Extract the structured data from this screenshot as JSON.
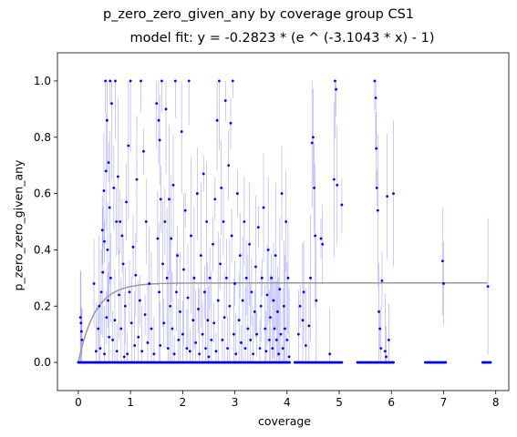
{
  "chart_data": {
    "type": "scatter",
    "title": "p_zero_zero_given_any by coverage group CS1",
    "subtitle": "model fit: y = -0.2823 * (e ^ (-3.1043 * x) - 1)",
    "xlabel": "coverage",
    "ylabel": "p_zero_zero_given_any",
    "xlim": [
      -0.4,
      8.25
    ],
    "ylim": [
      -0.1,
      1.1
    ],
    "xticks": [
      "0",
      "1",
      "2",
      "3",
      "4",
      "5",
      "6",
      "7",
      "8"
    ],
    "yticks": [
      "0.0",
      "0.2",
      "0.4",
      "0.6",
      "0.8",
      "1.0"
    ],
    "grid": false,
    "marker_color": "#0000ff",
    "fit_color": "#999999",
    "model": {
      "a": -0.2823,
      "b": -3.1043
    },
    "fit_x_range": [
      0,
      7.85
    ],
    "series": [
      {
        "points": [
          [
            0.04,
            0.16
          ],
          [
            0.05,
            0.14
          ],
          [
            0.06,
            0.11
          ],
          [
            0.07,
            0.08
          ],
          [
            0.3,
            0.28
          ],
          [
            0.34,
            0.04
          ],
          [
            0.38,
            0.12
          ],
          [
            0.4,
            0.2
          ],
          [
            0.42,
            0.05
          ],
          [
            0.44,
            0.25
          ],
          [
            0.46,
            0.47
          ],
          [
            0.47,
            0.32
          ],
          [
            0.49,
            0.61
          ],
          [
            0.5,
            0.43
          ],
          [
            0.5,
            0.03
          ],
          [
            0.52,
            1.0
          ],
          [
            0.53,
            0.68
          ],
          [
            0.54,
            0.16
          ],
          [
            0.55,
            0.86
          ],
          [
            0.56,
            0.4
          ],
          [
            0.57,
            0.22
          ],
          [
            0.58,
            0.71
          ],
          [
            0.59,
            0.09
          ],
          [
            0.6,
            0.55
          ],
          [
            0.61,
            1.0
          ],
          [
            0.62,
            0.3
          ],
          [
            0.64,
            0.92
          ],
          [
            0.66,
            0.08
          ],
          [
            0.68,
            0.62
          ],
          [
            0.7,
            0.15
          ],
          [
            0.71,
            1.0
          ],
          [
            0.73,
            0.5
          ],
          [
            0.74,
            0.04
          ],
          [
            0.76,
            0.66
          ],
          [
            0.78,
            0.24
          ],
          [
            0.8,
            0.5
          ],
          [
            0.82,
            0.12
          ],
          [
            0.84,
            0.45
          ],
          [
            0.86,
            0.35
          ],
          [
            0.88,
            0.02
          ],
          [
            0.9,
            0.2
          ],
          [
            0.92,
            0.57
          ],
          [
            0.94,
            0.03
          ],
          [
            0.96,
            0.77
          ],
          [
            0.98,
            0.25
          ],
          [
            1.0,
            1.0
          ],
          [
            1.02,
            0.14
          ],
          [
            1.05,
            0.41
          ],
          [
            1.08,
            0.06
          ],
          [
            1.1,
            0.31
          ],
          [
            1.12,
            0.65
          ],
          [
            1.15,
            0.09
          ],
          [
            1.18,
            0.22
          ],
          [
            1.2,
            1.0
          ],
          [
            1.22,
            0.04
          ],
          [
            1.25,
            0.75
          ],
          [
            1.28,
            0.17
          ],
          [
            1.3,
            0.5
          ],
          [
            1.33,
            0.07
          ],
          [
            1.36,
            0.28
          ],
          [
            1.4,
            0.12
          ],
          [
            1.45,
            0.03
          ],
          [
            1.5,
            0.92
          ],
          [
            1.52,
            0.44
          ],
          [
            1.54,
            0.86
          ],
          [
            1.55,
            0.25
          ],
          [
            1.56,
            0.79
          ],
          [
            1.57,
            0.06
          ],
          [
            1.58,
            0.58
          ],
          [
            1.6,
            1.0
          ],
          [
            1.62,
            0.35
          ],
          [
            1.64,
            0.14
          ],
          [
            1.66,
            0.5
          ],
          [
            1.68,
            0.9
          ],
          [
            1.7,
            0.3
          ],
          [
            1.72,
            0.05
          ],
          [
            1.74,
            0.58
          ],
          [
            1.76,
            0.2
          ],
          [
            1.78,
            0.44
          ],
          [
            1.8,
            0.12
          ],
          [
            1.82,
            0.63
          ],
          [
            1.84,
            0.03
          ],
          [
            1.86,
            1.0
          ],
          [
            1.88,
            0.25
          ],
          [
            1.9,
            0.38
          ],
          [
            1.92,
            0.08
          ],
          [
            1.95,
            0.18
          ],
          [
            1.98,
            0.82
          ],
          [
            2.0,
            0.1
          ],
          [
            2.02,
            0.33
          ],
          [
            2.05,
            0.54
          ],
          [
            2.08,
            0.05
          ],
          [
            2.1,
            0.23
          ],
          [
            2.12,
            1.0
          ],
          [
            2.14,
            0.04
          ],
          [
            2.16,
            0.45
          ],
          [
            2.2,
            0.15
          ],
          [
            2.22,
            0.3
          ],
          [
            2.25,
            0.07
          ],
          [
            2.28,
            0.6
          ],
          [
            2.3,
            0.19
          ],
          [
            2.32,
            0.03
          ],
          [
            2.35,
            0.38
          ],
          [
            2.38,
            0.1
          ],
          [
            2.4,
            0.67
          ],
          [
            2.42,
            0.25
          ],
          [
            2.44,
            0.05
          ],
          [
            2.46,
            0.5
          ],
          [
            2.48,
            0.15
          ],
          [
            2.5,
            0.02
          ],
          [
            2.52,
            0.3
          ],
          [
            2.55,
            0.08
          ],
          [
            2.58,
            0.42
          ],
          [
            2.6,
            0.14
          ],
          [
            2.62,
            0.58
          ],
          [
            2.64,
            0.04
          ],
          [
            2.66,
            0.86
          ],
          [
            2.68,
            0.22
          ],
          [
            2.7,
            1.0
          ],
          [
            2.72,
            0.35
          ],
          [
            2.74,
            0.62
          ],
          [
            2.76,
            0.08
          ],
          [
            2.78,
            0.5
          ],
          [
            2.8,
            0.16
          ],
          [
            2.82,
            0.93
          ],
          [
            2.84,
            0.3
          ],
          [
            2.86,
            0.05
          ],
          [
            2.88,
            0.7
          ],
          [
            2.9,
            0.2
          ],
          [
            2.92,
            0.85
          ],
          [
            2.94,
            0.45
          ],
          [
            2.96,
            1.0
          ],
          [
            2.98,
            0.1
          ],
          [
            3.0,
            0.28
          ],
          [
            3.02,
            0.03
          ],
          [
            3.05,
            0.6
          ],
          [
            3.08,
            0.15
          ],
          [
            3.1,
            0.38
          ],
          [
            3.12,
            0.07
          ],
          [
            3.15,
            0.22
          ],
          [
            3.18,
            0.5
          ],
          [
            3.2,
            0.05
          ],
          [
            3.22,
            0.3
          ],
          [
            3.25,
            0.12
          ],
          [
            3.28,
            0.42
          ],
          [
            3.3,
            0.08
          ],
          [
            3.32,
            0.25
          ],
          [
            3.35,
            0.03
          ],
          [
            3.38,
            0.18
          ],
          [
            3.4,
            0.34
          ],
          [
            3.42,
            0.1
          ],
          [
            3.45,
            0.48
          ],
          [
            3.48,
            0.05
          ],
          [
            3.5,
            0.2
          ],
          [
            3.52,
            0.3
          ],
          [
            3.55,
            0.55
          ],
          [
            3.58,
            0.12
          ],
          [
            3.6,
            0.04
          ],
          [
            3.62,
            0.24
          ],
          [
            3.64,
            0.4
          ],
          [
            3.66,
            0.08
          ],
          [
            3.68,
            0.16
          ],
          [
            3.7,
            0.3
          ],
          [
            3.72,
            0.05
          ],
          [
            3.74,
            0.22
          ],
          [
            3.76,
            0.12
          ],
          [
            3.78,
            0.38
          ],
          [
            3.8,
            0.08
          ],
          [
            3.82,
            0.18
          ],
          [
            3.84,
            0.03
          ],
          [
            3.86,
            0.26
          ],
          [
            3.88,
            0.1
          ],
          [
            3.9,
            0.6
          ],
          [
            3.92,
            0.05
          ],
          [
            3.94,
            0.2
          ],
          [
            3.96,
            0.12
          ],
          [
            3.98,
            0.5
          ],
          [
            4.0,
            0.08
          ],
          [
            4.02,
            0.3
          ],
          [
            4.04,
            0.02
          ],
          [
            4.22,
            0.1
          ],
          [
            4.25,
            0.2
          ],
          [
            4.3,
            0.15
          ],
          [
            4.32,
            0.25
          ],
          [
            4.36,
            0.06
          ],
          [
            4.42,
            0.13
          ],
          [
            4.45,
            0.3
          ],
          [
            4.48,
            0.78
          ],
          [
            4.5,
            0.8
          ],
          [
            4.52,
            0.62
          ],
          [
            4.54,
            0.45
          ],
          [
            4.56,
            0.22
          ],
          [
            4.65,
            0.44
          ],
          [
            4.68,
            0.42
          ],
          [
            4.82,
            0.03
          ],
          [
            4.9,
            0.65
          ],
          [
            4.92,
            1.0
          ],
          [
            4.94,
            0.97
          ],
          [
            4.96,
            0.63
          ],
          [
            5.05,
            0.56
          ],
          [
            5.68,
            1.0
          ],
          [
            5.7,
            0.94
          ],
          [
            5.71,
            0.76
          ],
          [
            5.72,
            0.62
          ],
          [
            5.74,
            0.54
          ],
          [
            5.76,
            0.18
          ],
          [
            5.78,
            0.12
          ],
          [
            5.8,
            0.05
          ],
          [
            5.82,
            0.29
          ],
          [
            5.88,
            0.04
          ],
          [
            5.9,
            0.02
          ],
          [
            5.92,
            0.59
          ],
          [
            5.95,
            0.08
          ],
          [
            6.04,
            0.6
          ],
          [
            6.98,
            0.36
          ],
          [
            7.0,
            0.28
          ],
          [
            7.85,
            0.27
          ]
        ],
        "zero_runs": [
          [
            0.0,
            4.05
          ],
          [
            4.15,
            5.05
          ],
          [
            5.35,
            6.05
          ],
          [
            6.65,
            7.05
          ],
          [
            7.75,
            7.9
          ]
        ]
      }
    ]
  }
}
